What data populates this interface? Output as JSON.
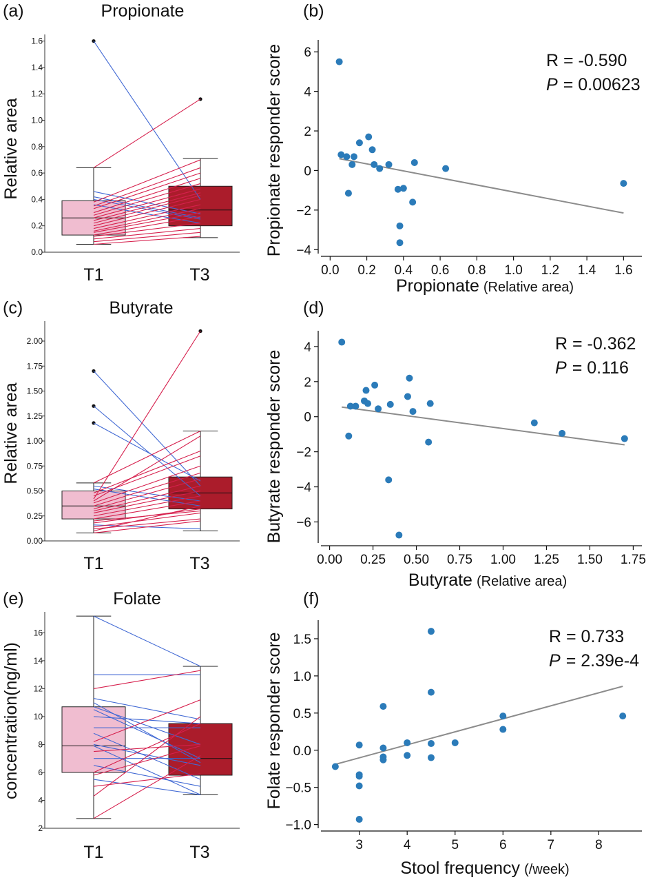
{
  "colors": {
    "box_t1": "#f0bdd0",
    "box_t3": "#ab1c2b",
    "line_increase": "#d6204d",
    "line_decrease": "#4169d4",
    "point": "#2b7bb9",
    "regression": "#8c8c8c",
    "axis": "#333333"
  },
  "chart_data": [
    {
      "panel": "(a)",
      "type": "box",
      "title": "Propionate",
      "ylabel": "Relative area",
      "categories": [
        "T1",
        "T3"
      ],
      "ylim": [
        0,
        1.65
      ],
      "yticks": [
        "0.0",
        "0.2",
        "0.4",
        "0.6",
        "0.8",
        "1.0",
        "1.2",
        "1.4",
        "1.6"
      ],
      "boxes": [
        {
          "name": "T1",
          "whisker_low": 0.06,
          "q1": 0.13,
          "median": 0.26,
          "q3": 0.39,
          "whisker_high": 0.64,
          "outliers": [
            1.6
          ]
        },
        {
          "name": "T3",
          "whisker_low": 0.11,
          "q1": 0.2,
          "median": 0.32,
          "q3": 0.5,
          "whisker_high": 0.71,
          "outliers": [
            1.16
          ]
        }
      ],
      "pairs": [
        [
          1.6,
          0.4
        ],
        [
          0.64,
          1.16
        ],
        [
          0.46,
          0.29
        ],
        [
          0.42,
          0.26
        ],
        [
          0.4,
          0.25
        ],
        [
          0.38,
          0.7
        ],
        [
          0.36,
          0.22
        ],
        [
          0.35,
          0.64
        ],
        [
          0.33,
          0.6
        ],
        [
          0.3,
          0.56
        ],
        [
          0.28,
          0.52
        ],
        [
          0.26,
          0.48
        ],
        [
          0.24,
          0.45
        ],
        [
          0.22,
          0.43
        ],
        [
          0.2,
          0.4
        ],
        [
          0.18,
          0.36
        ],
        [
          0.16,
          0.33
        ],
        [
          0.15,
          0.3
        ],
        [
          0.13,
          0.27
        ],
        [
          0.12,
          0.22
        ],
        [
          0.1,
          0.18
        ],
        [
          0.08,
          0.15
        ],
        [
          0.06,
          0.12
        ]
      ]
    },
    {
      "panel": "(b)",
      "type": "scatter",
      "xlabel_main": "Propionate",
      "xlabel_unit": "(Relative area)",
      "ylabel": "Propionate responder score",
      "xlim": [
        -0.05,
        1.7
      ],
      "ylim": [
        -4.2,
        6.6
      ],
      "xticks": [
        "0.0",
        "0.2",
        "0.4",
        "0.6",
        "0.8",
        "1.0",
        "1.2",
        "1.4",
        "1.6"
      ],
      "yticks": [
        "−4",
        "−2",
        "0",
        "2",
        "4",
        "6"
      ],
      "stat_r": "R = -0.590",
      "stat_p_label": "P",
      "stat_p": "=  0.00623",
      "trend": [
        [
          0.05,
          0.6
        ],
        [
          1.6,
          -2.15
        ]
      ],
      "points": [
        [
          0.05,
          5.5
        ],
        [
          0.06,
          0.8
        ],
        [
          0.09,
          0.7
        ],
        [
          0.1,
          -1.15
        ],
        [
          0.12,
          0.3
        ],
        [
          0.13,
          0.7
        ],
        [
          0.16,
          1.4
        ],
        [
          0.21,
          1.7
        ],
        [
          0.23,
          1.05
        ],
        [
          0.24,
          0.3
        ],
        [
          0.27,
          0.1
        ],
        [
          0.32,
          0.3
        ],
        [
          0.37,
          -0.95
        ],
        [
          0.38,
          -2.8
        ],
        [
          0.38,
          -3.65
        ],
        [
          0.4,
          -0.9
        ],
        [
          0.45,
          -1.6
        ],
        [
          0.46,
          0.4
        ],
        [
          0.63,
          0.1
        ],
        [
          1.6,
          -0.65
        ]
      ]
    },
    {
      "panel": "(c)",
      "type": "box",
      "title": "Butyrate",
      "ylabel": "Relative area",
      "categories": [
        "T1",
        "T3"
      ],
      "ylim": [
        0,
        2.2
      ],
      "yticks": [
        "0.00",
        "0.25",
        "0.50",
        "0.75",
        "1.00",
        "1.25",
        "1.50",
        "1.75",
        "2.00"
      ],
      "boxes": [
        {
          "name": "T1",
          "whisker_low": 0.08,
          "q1": 0.22,
          "median": 0.35,
          "q3": 0.5,
          "whisker_high": 0.58,
          "outliers": [
            1.7,
            1.35,
            1.18
          ]
        },
        {
          "name": "T3",
          "whisker_low": 0.1,
          "q1": 0.32,
          "median": 0.48,
          "q3": 0.64,
          "whisker_high": 1.1,
          "outliers": [
            2.1
          ]
        }
      ],
      "pairs": [
        [
          1.7,
          0.55
        ],
        [
          1.35,
          0.45
        ],
        [
          1.18,
          0.6
        ],
        [
          0.58,
          1.1
        ],
        [
          0.55,
          0.4
        ],
        [
          0.52,
          0.35
        ],
        [
          0.48,
          0.9
        ],
        [
          0.45,
          0.85
        ],
        [
          0.42,
          2.1
        ],
        [
          0.4,
          1.05
        ],
        [
          0.38,
          0.75
        ],
        [
          0.35,
          0.68
        ],
        [
          0.32,
          0.62
        ],
        [
          0.3,
          0.55
        ],
        [
          0.28,
          0.5
        ],
        [
          0.25,
          0.45
        ],
        [
          0.22,
          0.4
        ],
        [
          0.2,
          0.3
        ],
        [
          0.18,
          0.32
        ],
        [
          0.16,
          0.12
        ],
        [
          0.14,
          0.28
        ],
        [
          0.12,
          0.22
        ],
        [
          0.1,
          0.35
        ],
        [
          0.08,
          0.2
        ]
      ]
    },
    {
      "panel": "(d)",
      "type": "scatter",
      "xlabel_main": "Butyrate",
      "xlabel_unit": "(Relative area)",
      "ylabel": "Butyrate responder score",
      "xlim": [
        -0.05,
        1.8
      ],
      "ylim": [
        -7.2,
        4.9
      ],
      "xticks": [
        "0.00",
        "0.25",
        "0.50",
        "0.75",
        "1.00",
        "1.25",
        "1.50",
        "1.75"
      ],
      "yticks": [
        "−6",
        "−4",
        "−2",
        "0",
        "2",
        "4"
      ],
      "stat_r": "R = -0.362",
      "stat_p_label": "P",
      "stat_p": "=  0.116",
      "trend": [
        [
          0.07,
          0.55
        ],
        [
          1.7,
          -1.6
        ]
      ],
      "points": [
        [
          0.07,
          4.25
        ],
        [
          0.11,
          -1.1
        ],
        [
          0.12,
          0.6
        ],
        [
          0.15,
          0.6
        ],
        [
          0.2,
          0.9
        ],
        [
          0.21,
          1.5
        ],
        [
          0.22,
          0.75
        ],
        [
          0.26,
          1.8
        ],
        [
          0.28,
          0.45
        ],
        [
          0.34,
          -3.6
        ],
        [
          0.35,
          0.7
        ],
        [
          0.4,
          -6.75
        ],
        [
          0.45,
          1.15
        ],
        [
          0.46,
          2.2
        ],
        [
          0.48,
          0.3
        ],
        [
          0.57,
          -1.45
        ],
        [
          0.58,
          0.75
        ],
        [
          1.18,
          -0.35
        ],
        [
          1.34,
          -0.95
        ],
        [
          1.7,
          -1.25
        ]
      ]
    },
    {
      "panel": "(e)",
      "type": "box",
      "title": "Folate",
      "ylabel": "concentration(ng/ml)",
      "categories": [
        "T1",
        "T3"
      ],
      "ylim": [
        2,
        17.5
      ],
      "yticks": [
        "2",
        "4",
        "6",
        "8",
        "10",
        "12",
        "14",
        "16"
      ],
      "boxes": [
        {
          "name": "T1",
          "whisker_low": 2.7,
          "q1": 6.0,
          "median": 7.9,
          "q3": 10.7,
          "whisker_high": 17.2,
          "outliers": []
        },
        {
          "name": "T3",
          "whisker_low": 4.4,
          "q1": 5.8,
          "median": 7.0,
          "q3": 9.5,
          "whisker_high": 13.6,
          "outliers": []
        }
      ],
      "pairs": [
        [
          17.2,
          13.6
        ],
        [
          13.0,
          13.0
        ],
        [
          12.0,
          13.3
        ],
        [
          11.3,
          9.8
        ],
        [
          11.0,
          6.7
        ],
        [
          10.7,
          8.0
        ],
        [
          10.5,
          7.0
        ],
        [
          10.0,
          9.5
        ],
        [
          9.2,
          9.2
        ],
        [
          8.8,
          5.5
        ],
        [
          8.2,
          11.2
        ],
        [
          8.0,
          6.5
        ],
        [
          7.9,
          4.4
        ],
        [
          7.5,
          8.0
        ],
        [
          7.0,
          7.0
        ],
        [
          6.5,
          5.0
        ],
        [
          6.0,
          9.5
        ],
        [
          5.8,
          7.9
        ],
        [
          5.5,
          4.4
        ],
        [
          5.0,
          5.9
        ],
        [
          4.3,
          10.0
        ],
        [
          2.7,
          7.2
        ]
      ]
    },
    {
      "panel": "(f)",
      "type": "scatter",
      "xlabel_main": "Stool frequency",
      "xlabel_unit": "(/week)",
      "ylabel": "Folate responder score",
      "xlim": [
        2.2,
        8.9
      ],
      "ylim": [
        -1.05,
        1.75
      ],
      "xticks": [
        "3",
        "4",
        "5",
        "6",
        "7",
        "8"
      ],
      "yticks": [
        "−1.0",
        "−0.5",
        "0.0",
        "0.5",
        "1.0",
        "1.5"
      ],
      "stat_r": "R =  0.733",
      "stat_p_label": "P",
      "stat_p": "=  2.39e-4",
      "trend": [
        [
          2.5,
          -0.19
        ],
        [
          8.5,
          0.86
        ]
      ],
      "points": [
        [
          2.5,
          -0.22
        ],
        [
          3.0,
          0.07
        ],
        [
          3.0,
          -0.33
        ],
        [
          3.0,
          -0.35
        ],
        [
          3.0,
          -0.48
        ],
        [
          3.0,
          -0.93
        ],
        [
          3.5,
          0.59
        ],
        [
          3.5,
          0.03
        ],
        [
          3.5,
          -0.09
        ],
        [
          3.5,
          -0.13
        ],
        [
          4.0,
          0.1
        ],
        [
          4.0,
          -0.07
        ],
        [
          4.5,
          1.6
        ],
        [
          4.5,
          0.78
        ],
        [
          4.5,
          0.09
        ],
        [
          4.5,
          -0.1
        ],
        [
          5.0,
          0.1
        ],
        [
          6.0,
          0.46
        ],
        [
          6.0,
          0.28
        ],
        [
          8.5,
          0.46
        ]
      ]
    }
  ]
}
